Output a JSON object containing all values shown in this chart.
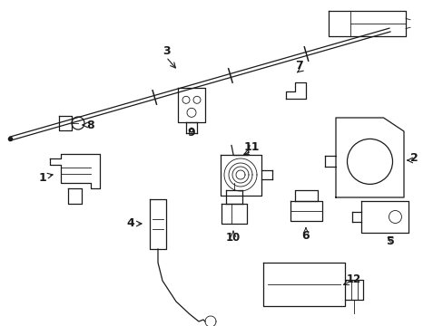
{
  "bg_color": "#ffffff",
  "line_color": "#1a1a1a",
  "figsize": [
    4.89,
    3.6
  ],
  "dpi": 100,
  "lw": 0.9,
  "lw_thin": 0.6
}
